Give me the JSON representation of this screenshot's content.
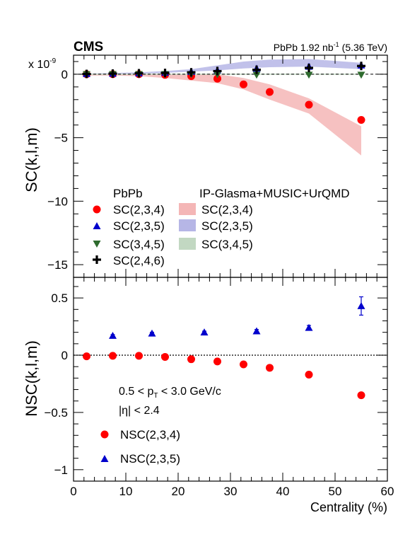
{
  "header": {
    "experiment": "CMS",
    "lumi_prefix": "PbPb 1.92 nb",
    "lumi_exp": "-1",
    "lumi_suffix": "(5.36 TeV)"
  },
  "colors": {
    "sc234": "#ff0000",
    "sc235": "#0000cc",
    "sc345": "#2e6b2e",
    "sc246": "#000000",
    "band234": "#f4b6b6",
    "band235": "#b6b6e6",
    "band345": "#c2d8c2"
  },
  "chart_data": [
    {
      "type": "scatter",
      "panel": "top",
      "ylabel": "SC(k,l,m)",
      "y_multiplier_prefix": "x 10",
      "y_multiplier_exp": "-9",
      "xlim": [
        0,
        60
      ],
      "ylim": [
        -16,
        1.5
      ],
      "yticks": [
        0,
        -5,
        -10,
        -15
      ],
      "reference_line": 0,
      "legend": {
        "data_header": "PbPb",
        "model_header": "IP-Glasma+MUSIC+UrQMD",
        "placement": "bottom-left"
      },
      "series": [
        {
          "name": "SC(2,3,4)",
          "marker": "circle",
          "color_key": "sc234",
          "x": [
            2.5,
            7.5,
            12.5,
            17.5,
            22.5,
            27.5,
            32.5,
            37.5,
            45,
            55
          ],
          "y": [
            0.0,
            0.0,
            0.0,
            -0.05,
            -0.15,
            -0.35,
            -0.8,
            -1.4,
            -2.4,
            -3.6
          ]
        },
        {
          "name": "SC(2,3,5)",
          "marker": "triangle-up",
          "color_key": "sc235",
          "x": [
            2.5,
            7.5,
            12.5,
            17.5,
            22.5,
            27.5,
            35,
            45,
            55
          ],
          "y": [
            0.03,
            0.05,
            0.08,
            0.12,
            0.2,
            0.3,
            0.45,
            0.6,
            0.7
          ]
        },
        {
          "name": "SC(3,4,5)",
          "marker": "triangle-down",
          "color_key": "sc345",
          "x": [
            2.5,
            7.5,
            12.5,
            17.5,
            22.5,
            27.5,
            35,
            45,
            55
          ],
          "y": [
            0.0,
            0.0,
            0.0,
            0.0,
            0.0,
            -0.02,
            -0.05,
            -0.05,
            -0.05
          ]
        },
        {
          "name": "SC(2,4,6)",
          "marker": "cross",
          "color_key": "sc246",
          "x": [
            2.5,
            7.5,
            12.5,
            17.5,
            22.5,
            27.5,
            35,
            45,
            55
          ],
          "y": [
            0.02,
            0.05,
            0.08,
            0.1,
            0.15,
            0.25,
            0.35,
            0.5,
            0.65
          ]
        }
      ],
      "bands": [
        {
          "name": "SC(2,3,4)",
          "color_key": "band234",
          "x": [
            2.5,
            7.5,
            12.5,
            17.5,
            22.5,
            27.5,
            32.5,
            37.5,
            45,
            55
          ],
          "lo": [
            -0.1,
            -0.1,
            -0.15,
            -0.3,
            -0.5,
            -0.7,
            -1.2,
            -2.0,
            -3.1,
            -6.4
          ],
          "hi": [
            0.05,
            0.05,
            0.05,
            0.0,
            0.0,
            0.0,
            -0.3,
            -0.8,
            -1.9,
            -4.1
          ]
        },
        {
          "name": "SC(2,3,5)",
          "color_key": "band235",
          "x": [
            2.5,
            7.5,
            12.5,
            17.5,
            22.5,
            27.5,
            32.5,
            37.5,
            45,
            55
          ],
          "lo": [
            0.0,
            0.0,
            0.05,
            0.1,
            0.2,
            0.3,
            0.45,
            0.55,
            0.6,
            0.4
          ],
          "hi": [
            0.05,
            0.1,
            0.15,
            0.25,
            0.4,
            0.7,
            1.0,
            1.15,
            1.2,
            0.9
          ]
        },
        {
          "name": "SC(3,4,5)",
          "color_key": "band345",
          "x": [
            2.5,
            7.5,
            12.5,
            17.5,
            22.5,
            27.5,
            32.5,
            37.5,
            45,
            55
          ],
          "lo": [
            -0.05,
            -0.05,
            -0.05,
            -0.05,
            -0.05,
            -0.05,
            -0.05,
            -0.05,
            -0.05,
            -0.05
          ],
          "hi": [
            0.05,
            0.05,
            0.05,
            0.05,
            0.05,
            0.05,
            0.05,
            0.05,
            0.05,
            0.05
          ]
        }
      ]
    },
    {
      "type": "scatter",
      "panel": "bottom",
      "ylabel": "NSC(k,l,m)",
      "xlabel": "Centrality (%)",
      "xlim": [
        0,
        60
      ],
      "ylim": [
        -1.1,
        0.68
      ],
      "xticks": [
        0,
        10,
        20,
        30,
        40,
        50,
        60
      ],
      "yticks": [
        0.5,
        0,
        -0.5,
        -1
      ],
      "reference_line": 0,
      "annotation_pt": "0.5 < p",
      "annotation_pt_sub": "T",
      "annotation_pt_tail": " < 3.0 GeV/c",
      "annotation_eta": "|η| < 2.4",
      "legend": {
        "placement": "bottom-left"
      },
      "series": [
        {
          "name": "NSC(2,3,4)",
          "marker": "circle",
          "color_key": "sc234",
          "x": [
            2.5,
            7.5,
            12.5,
            17.5,
            22.5,
            27.5,
            32.5,
            37.5,
            45,
            55
          ],
          "y": [
            -0.01,
            -0.005,
            -0.005,
            -0.015,
            -0.035,
            -0.055,
            -0.08,
            -0.11,
            -0.17,
            -0.35
          ]
        },
        {
          "name": "NSC(2,3,5)",
          "marker": "triangle-up",
          "color_key": "sc235",
          "x": [
            7.5,
            15,
            25,
            35,
            45,
            55
          ],
          "y": [
            0.17,
            0.19,
            0.2,
            0.21,
            0.24,
            0.43
          ],
          "err": [
            0.01,
            0.01,
            0.01,
            0.015,
            0.02,
            0.08
          ]
        }
      ]
    }
  ]
}
